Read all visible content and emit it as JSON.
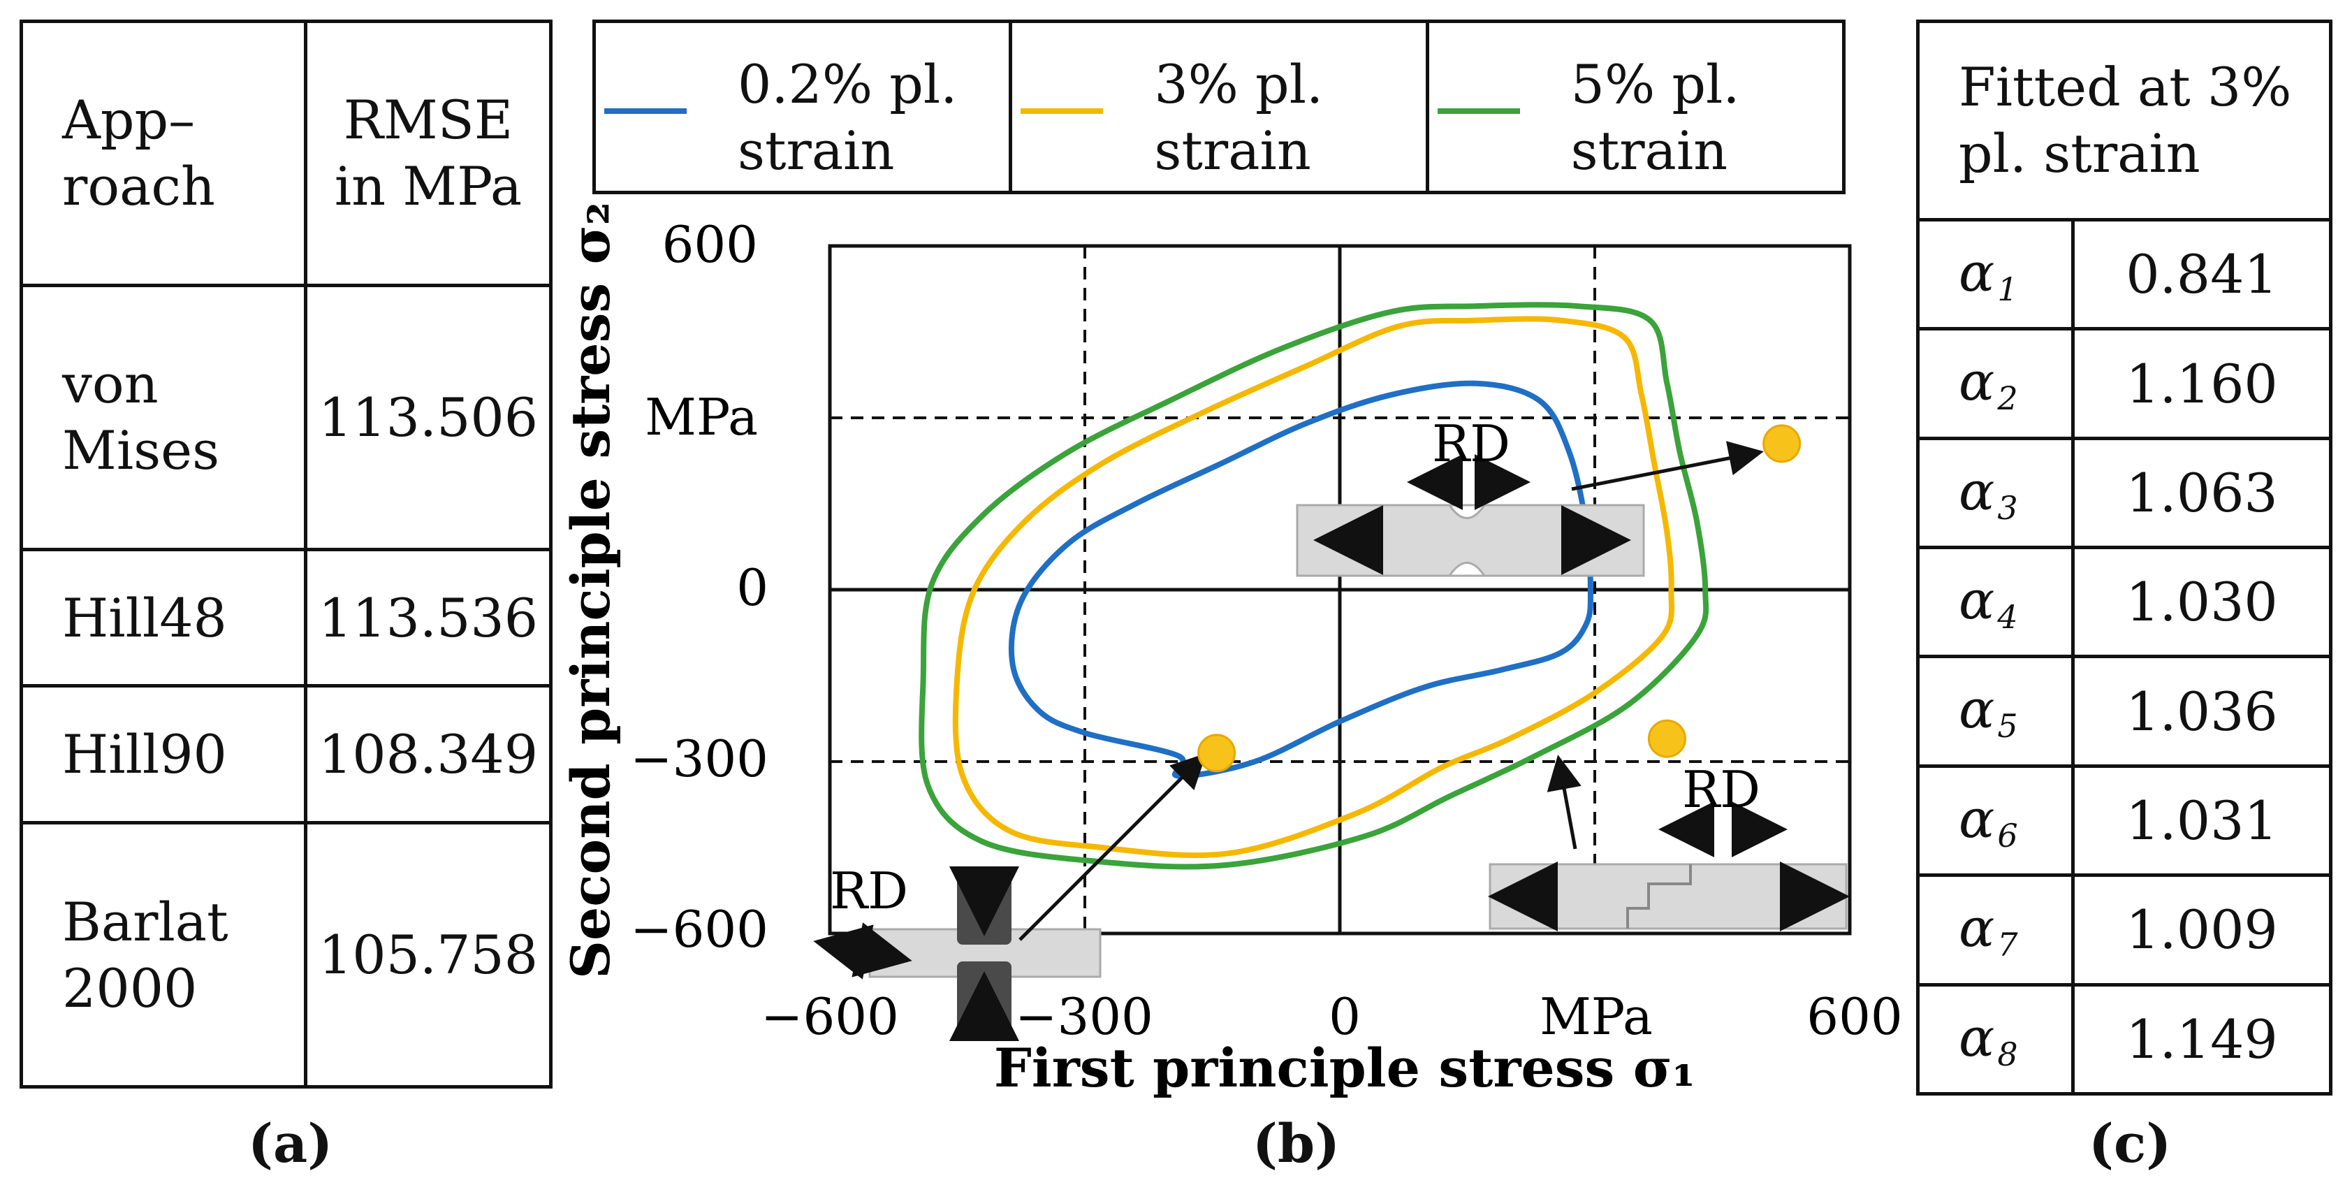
{
  "panel_labels": {
    "a": "(a)",
    "b": "(b)",
    "c": "(c)"
  },
  "table_a": {
    "header": {
      "approach_line1": "App–",
      "approach_line2": "roach",
      "rmse_line1": "RMSE",
      "rmse_line2": "in MPa"
    },
    "rows": [
      {
        "approach_line1": "von",
        "approach_line2": "Mises",
        "rmse": "113.506"
      },
      {
        "approach_line1": "Hill48",
        "approach_line2": "",
        "rmse": "113.536"
      },
      {
        "approach_line1": "Hill90",
        "approach_line2": "",
        "rmse": "108.349"
      },
      {
        "approach_line1": "Barlat",
        "approach_line2": "2000",
        "rmse": "105.758"
      }
    ]
  },
  "table_c": {
    "header_line1": "Fitted at 3%",
    "header_line2": "pl. strain",
    "symbol": "α",
    "rows": [
      {
        "index": "1",
        "value": "0.841"
      },
      {
        "index": "2",
        "value": "1.160"
      },
      {
        "index": "3",
        "value": "1.063"
      },
      {
        "index": "4",
        "value": "1.030"
      },
      {
        "index": "5",
        "value": "1.036"
      },
      {
        "index": "6",
        "value": "1.031"
      },
      {
        "index": "7",
        "value": "1.009"
      },
      {
        "index": "8",
        "value": "1.149"
      }
    ]
  },
  "chart_data": {
    "type": "line",
    "title": "",
    "xlabel": "First principle stress σ₁",
    "ylabel": "Second principle stress σ₂",
    "x_unit": "MPa",
    "y_unit": "MPa",
    "xlim": [
      -600,
      600
    ],
    "ylim": [
      -600,
      600
    ],
    "x_ticks": [
      -600,
      -300,
      0,
      600
    ],
    "y_ticks": [
      600,
      0,
      -300,
      -600
    ],
    "x_tick_labels": [
      "−600",
      "−300",
      "0",
      "600"
    ],
    "y_tick_labels": [
      "600",
      "0",
      "−300",
      "−600"
    ],
    "grid": "dashed at ±300, solid axes at 0",
    "series": [
      {
        "name": "0.2% pl. strain",
        "label_line1": "0.2% pl.",
        "label_line2": "strain",
        "color": "#1f6fc5",
        "points": [
          [
            -190,
            -290
          ],
          [
            -300,
            -250
          ],
          [
            -355,
            -210
          ],
          [
            -385,
            -130
          ],
          [
            -375,
            -20
          ],
          [
            -320,
            80
          ],
          [
            -240,
            150
          ],
          [
            -140,
            220
          ],
          [
            -40,
            290
          ],
          [
            60,
            340
          ],
          [
            160,
            360
          ],
          [
            235,
            330
          ],
          [
            270,
            240
          ],
          [
            290,
            110
          ],
          [
            295,
            0
          ],
          [
            290,
            -60
          ],
          [
            260,
            -110
          ],
          [
            190,
            -140
          ],
          [
            100,
            -170
          ],
          [
            0,
            -230
          ],
          [
            -100,
            -300
          ],
          [
            -190,
            -325
          ]
        ]
      },
      {
        "name": "3% pl. strain",
        "label_line1": "3% pl.",
        "label_line2": "strain",
        "color": "#f5b800",
        "points": [
          [
            -130,
            -460
          ],
          [
            -280,
            -450
          ],
          [
            -390,
            -420
          ],
          [
            -445,
            -320
          ],
          [
            -450,
            -150
          ],
          [
            -430,
            0
          ],
          [
            -370,
            120
          ],
          [
            -280,
            220
          ],
          [
            -160,
            310
          ],
          [
            -40,
            390
          ],
          [
            70,
            460
          ],
          [
            160,
            470
          ],
          [
            260,
            470
          ],
          [
            335,
            440
          ],
          [
            355,
            340
          ],
          [
            370,
            220
          ],
          [
            385,
            100
          ],
          [
            390,
            0
          ],
          [
            380,
            -80
          ],
          [
            300,
            -180
          ],
          [
            200,
            -260
          ],
          [
            120,
            -310
          ],
          [
            20,
            -390
          ]
        ]
      },
      {
        "name": "5% pl. strain",
        "label_line1": "5% pl.",
        "label_line2": "strain",
        "color": "#3aa33a",
        "points": [
          [
            -130,
            -480
          ],
          [
            -280,
            -475
          ],
          [
            -420,
            -440
          ],
          [
            -485,
            -340
          ],
          [
            -490,
            -150
          ],
          [
            -480,
            10
          ],
          [
            -420,
            130
          ],
          [
            -320,
            240
          ],
          [
            -200,
            330
          ],
          [
            -70,
            420
          ],
          [
            60,
            485
          ],
          [
            160,
            495
          ],
          [
            280,
            495
          ],
          [
            365,
            470
          ],
          [
            385,
            360
          ],
          [
            400,
            240
          ],
          [
            420,
            120
          ],
          [
            430,
            0
          ],
          [
            420,
            -80
          ],
          [
            340,
            -200
          ],
          [
            230,
            -290
          ],
          [
            130,
            -360
          ],
          [
            30,
            -430
          ]
        ]
      }
    ],
    "experimental_points": [
      {
        "name": "uniaxial tension RD",
        "x": 520,
        "y": 255
      },
      {
        "name": "biaxial compression specimen",
        "x": -145,
        "y": -285
      },
      {
        "name": "shear specimen",
        "x": 385,
        "y": -260
      }
    ],
    "annotations": {
      "rd_label": "RD"
    },
    "marker_color": "#f7c21a"
  }
}
